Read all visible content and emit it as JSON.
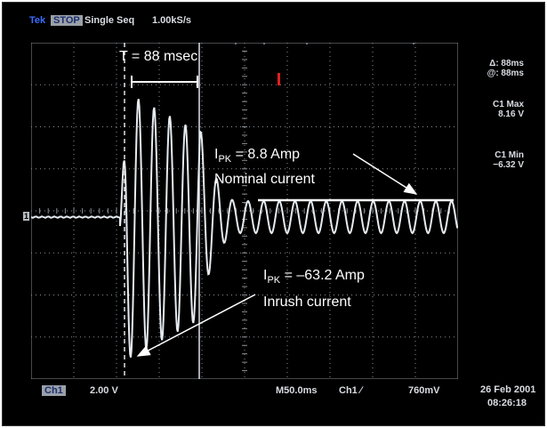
{
  "header": {
    "brand": "Tek",
    "mode": "STOP",
    "acquisition": "Single Seq",
    "sample_rate": "1.00kS/s"
  },
  "annotations": {
    "period": "T = 88 msec",
    "nominal_prefix": "I",
    "nominal_sub": "PK",
    "nominal_value": " = 8.8 Amp",
    "nominal_label": "Nominal current",
    "inrush_prefix": "I",
    "inrush_sub": "PK",
    "inrush_value": " = –63.2 Amp",
    "inrush_label": "Inrush current"
  },
  "readouts": {
    "delta": "Δ: 88ms",
    "at": "@: 88ms",
    "c1max_label": "C1 Max",
    "c1max_value": "8.16 V",
    "c1min_label": "C1 Min",
    "c1min_value": "−6.32 V"
  },
  "footer": {
    "ch1_box": "Ch1",
    "ch1_scale": "2.00 V",
    "timebase": "M50.0ms",
    "trigger": "Ch1 ∕",
    "trigger_level": "760mV",
    "date": "26 Feb 2001",
    "time": "08:26:18"
  },
  "colors": {
    "trace": "#e6ebf0",
    "grid": "#8a8f96",
    "cursor": "#dfe3ea",
    "text": "#ffffff"
  }
}
